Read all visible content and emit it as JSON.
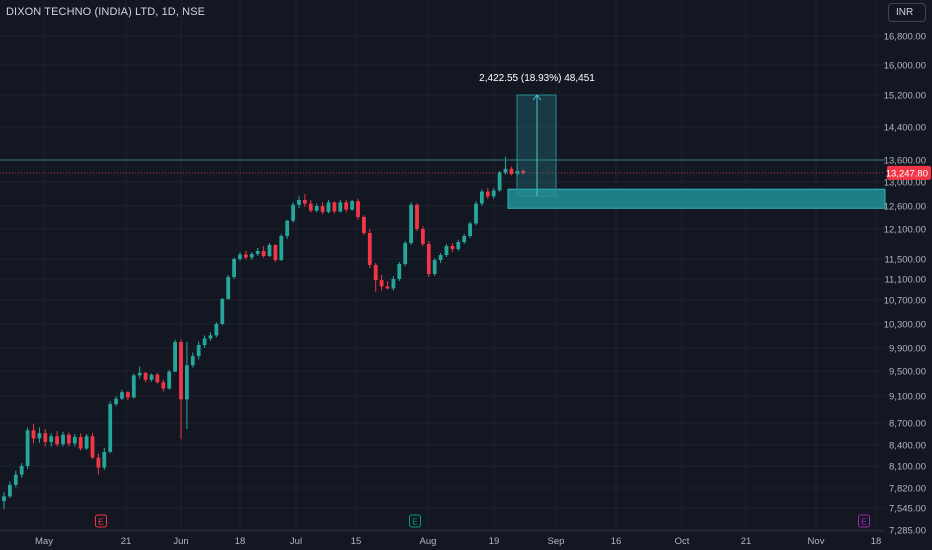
{
  "header": {
    "title": "DIXON TECHNO (INDIA) LTD, 1D, NSE"
  },
  "currency": {
    "label": "INR"
  },
  "theme": {
    "up": "#26a69a",
    "down": "#f23645",
    "bg": "#131722",
    "grid": "#1e222d",
    "text": "#b2b5be",
    "teal": "#1e8c93",
    "event_red": "#f23645",
    "event_green": "#089981",
    "event_purple": "#9c27b0"
  },
  "chart_data": {
    "type": "candlestick",
    "title": "DIXON TECHNO (INDIA) LTD, 1D, NSE",
    "y_ticks": [
      "16,800.00",
      "16,000.00",
      "15,200.00",
      "14,400.00",
      "13,600.00",
      "13,000.00",
      "12,600.00",
      "12,100.00",
      "11,500.00",
      "11,100.00",
      "10,700.00",
      "10,300.00",
      "9,900.00",
      "9,500.00",
      "9,100.00",
      "8,700.00",
      "8,400.00",
      "8,100.00",
      "7,820.00",
      "7,545.00",
      "7,285.00"
    ],
    "x_ticks": [
      "May",
      "21",
      "Jun",
      "18",
      "Jul",
      "15",
      "Aug",
      "19",
      "Sep",
      "16",
      "Oct",
      "21",
      "Nov",
      "18"
    ],
    "last_price": "13,247.80",
    "candles": [
      {
        "o": 7640,
        "h": 7760,
        "l": 7530,
        "c": 7705
      },
      {
        "o": 7705,
        "h": 7900,
        "l": 7680,
        "c": 7860
      },
      {
        "o": 7860,
        "h": 8040,
        "l": 7830,
        "c": 7990
      },
      {
        "o": 7990,
        "h": 8140,
        "l": 7950,
        "c": 8100
      },
      {
        "o": 8100,
        "h": 8640,
        "l": 8060,
        "c": 8600
      },
      {
        "o": 8600,
        "h": 8690,
        "l": 8420,
        "c": 8490
      },
      {
        "o": 8490,
        "h": 8640,
        "l": 8430,
        "c": 8560
      },
      {
        "o": 8560,
        "h": 8620,
        "l": 8380,
        "c": 8440
      },
      {
        "o": 8440,
        "h": 8560,
        "l": 8380,
        "c": 8520
      },
      {
        "o": 8520,
        "h": 8590,
        "l": 8380,
        "c": 8410
      },
      {
        "o": 8410,
        "h": 8580,
        "l": 8380,
        "c": 8540
      },
      {
        "o": 8540,
        "h": 8570,
        "l": 8380,
        "c": 8420
      },
      {
        "o": 8420,
        "h": 8550,
        "l": 8380,
        "c": 8510
      },
      {
        "o": 8510,
        "h": 8560,
        "l": 8320,
        "c": 8350
      },
      {
        "o": 8350,
        "h": 8550,
        "l": 8330,
        "c": 8520
      },
      {
        "o": 8520,
        "h": 8560,
        "l": 8200,
        "c": 8220
      },
      {
        "o": 8220,
        "h": 8280,
        "l": 7990,
        "c": 8080
      },
      {
        "o": 8080,
        "h": 8360,
        "l": 8050,
        "c": 8300
      },
      {
        "o": 8300,
        "h": 9020,
        "l": 8280,
        "c": 8980
      },
      {
        "o": 8980,
        "h": 9100,
        "l": 8950,
        "c": 9060
      },
      {
        "o": 9060,
        "h": 9200,
        "l": 9040,
        "c": 9160
      },
      {
        "o": 9160,
        "h": 9180,
        "l": 9040,
        "c": 9080
      },
      {
        "o": 9080,
        "h": 9460,
        "l": 9060,
        "c": 9430
      },
      {
        "o": 9430,
        "h": 9580,
        "l": 9380,
        "c": 9470
      },
      {
        "o": 9470,
        "h": 9480,
        "l": 9320,
        "c": 9360
      },
      {
        "o": 9360,
        "h": 9460,
        "l": 9330,
        "c": 9440
      },
      {
        "o": 9440,
        "h": 9470,
        "l": 9300,
        "c": 9320
      },
      {
        "o": 9320,
        "h": 9360,
        "l": 9170,
        "c": 9220
      },
      {
        "o": 9220,
        "h": 9520,
        "l": 9200,
        "c": 9490
      },
      {
        "o": 9490,
        "h": 10040,
        "l": 9480,
        "c": 10000
      },
      {
        "o": 10000,
        "h": 10040,
        "l": 8480,
        "c": 9050
      },
      {
        "o": 9050,
        "h": 10000,
        "l": 8620,
        "c": 9600
      },
      {
        "o": 9600,
        "h": 9820,
        "l": 9560,
        "c": 9760
      },
      {
        "o": 9760,
        "h": 10010,
        "l": 9700,
        "c": 9950
      },
      {
        "o": 9950,
        "h": 10110,
        "l": 9900,
        "c": 10060
      },
      {
        "o": 10060,
        "h": 10160,
        "l": 10020,
        "c": 10110
      },
      {
        "o": 10110,
        "h": 10330,
        "l": 10080,
        "c": 10300
      },
      {
        "o": 10300,
        "h": 10740,
        "l": 10280,
        "c": 10720
      },
      {
        "o": 10720,
        "h": 11180,
        "l": 10700,
        "c": 11140
      },
      {
        "o": 11140,
        "h": 11530,
        "l": 11100,
        "c": 11500
      },
      {
        "o": 11500,
        "h": 11640,
        "l": 11460,
        "c": 11590
      },
      {
        "o": 11590,
        "h": 11660,
        "l": 11490,
        "c": 11530
      },
      {
        "o": 11530,
        "h": 11640,
        "l": 11480,
        "c": 11600
      },
      {
        "o": 11600,
        "h": 11720,
        "l": 11560,
        "c": 11660
      },
      {
        "o": 11660,
        "h": 11760,
        "l": 11520,
        "c": 11560
      },
      {
        "o": 11560,
        "h": 11820,
        "l": 11540,
        "c": 11780
      },
      {
        "o": 11780,
        "h": 11800,
        "l": 11440,
        "c": 11480
      },
      {
        "o": 11480,
        "h": 12000,
        "l": 11460,
        "c": 11960
      },
      {
        "o": 11960,
        "h": 12300,
        "l": 11900,
        "c": 12280
      },
      {
        "o": 12280,
        "h": 12660,
        "l": 12240,
        "c": 12620
      },
      {
        "o": 12620,
        "h": 12760,
        "l": 12560,
        "c": 12700
      },
      {
        "o": 12700,
        "h": 12800,
        "l": 12580,
        "c": 12640
      },
      {
        "o": 12640,
        "h": 12700,
        "l": 12460,
        "c": 12500
      },
      {
        "o": 12500,
        "h": 12640,
        "l": 12460,
        "c": 12600
      },
      {
        "o": 12600,
        "h": 12660,
        "l": 12420,
        "c": 12470
      },
      {
        "o": 12470,
        "h": 12700,
        "l": 12440,
        "c": 12660
      },
      {
        "o": 12660,
        "h": 12680,
        "l": 12440,
        "c": 12480
      },
      {
        "o": 12480,
        "h": 12700,
        "l": 12460,
        "c": 12660
      },
      {
        "o": 12660,
        "h": 12700,
        "l": 12460,
        "c": 12520
      },
      {
        "o": 12520,
        "h": 12700,
        "l": 12500,
        "c": 12680
      },
      {
        "o": 12680,
        "h": 12720,
        "l": 12300,
        "c": 12360
      },
      {
        "o": 12360,
        "h": 12400,
        "l": 11980,
        "c": 12020
      },
      {
        "o": 12020,
        "h": 12100,
        "l": 11320,
        "c": 11380
      },
      {
        "o": 11380,
        "h": 11420,
        "l": 10860,
        "c": 11080
      },
      {
        "o": 11080,
        "h": 11180,
        "l": 10880,
        "c": 10960
      },
      {
        "o": 10960,
        "h": 11060,
        "l": 10900,
        "c": 10920
      },
      {
        "o": 10920,
        "h": 11160,
        "l": 10880,
        "c": 11100
      },
      {
        "o": 11100,
        "h": 11440,
        "l": 11060,
        "c": 11400
      },
      {
        "o": 11400,
        "h": 11860,
        "l": 11360,
        "c": 11820
      },
      {
        "o": 11820,
        "h": 12660,
        "l": 11780,
        "c": 12620
      },
      {
        "o": 12620,
        "h": 12640,
        "l": 12060,
        "c": 12100
      },
      {
        "o": 12100,
        "h": 12160,
        "l": 11760,
        "c": 11800
      },
      {
        "o": 11800,
        "h": 11860,
        "l": 11140,
        "c": 11200
      },
      {
        "o": 11200,
        "h": 11520,
        "l": 11160,
        "c": 11480
      },
      {
        "o": 11480,
        "h": 11620,
        "l": 11420,
        "c": 11580
      },
      {
        "o": 11580,
        "h": 11800,
        "l": 11540,
        "c": 11760
      },
      {
        "o": 11760,
        "h": 11820,
        "l": 11640,
        "c": 11700
      },
      {
        "o": 11700,
        "h": 11880,
        "l": 11660,
        "c": 11840
      },
      {
        "o": 11840,
        "h": 12000,
        "l": 11800,
        "c": 11960
      },
      {
        "o": 11960,
        "h": 12260,
        "l": 11920,
        "c": 12220
      },
      {
        "o": 12220,
        "h": 12680,
        "l": 12180,
        "c": 12640
      },
      {
        "o": 12640,
        "h": 12880,
        "l": 12600,
        "c": 12840
      },
      {
        "o": 12840,
        "h": 12900,
        "l": 12720,
        "c": 12760
      },
      {
        "o": 12760,
        "h": 12900,
        "l": 12720,
        "c": 12860
      },
      {
        "o": 12860,
        "h": 13300,
        "l": 12840,
        "c": 13260
      },
      {
        "o": 13260,
        "h": 13680,
        "l": 13200,
        "c": 13360
      },
      {
        "o": 13360,
        "h": 13420,
        "l": 13180,
        "c": 13220
      },
      {
        "o": 13220,
        "h": 13500,
        "l": 13180,
        "c": 13300
      },
      {
        "o": 13300,
        "h": 13360,
        "l": 13200,
        "c": 13248
      }
    ],
    "annotations": {
      "measure_label": "2,422.55 (18.93%) 48,451",
      "measure_top": 15200,
      "measure_bottom": 12760,
      "resistance_line": 13600,
      "support_zone": [
        12550,
        12880
      ],
      "events": [
        {
          "label": "E",
          "kind": "earnings-red"
        },
        {
          "label": "E",
          "kind": "earnings-green"
        },
        {
          "label": "E",
          "kind": "earnings-purple"
        }
      ]
    }
  }
}
